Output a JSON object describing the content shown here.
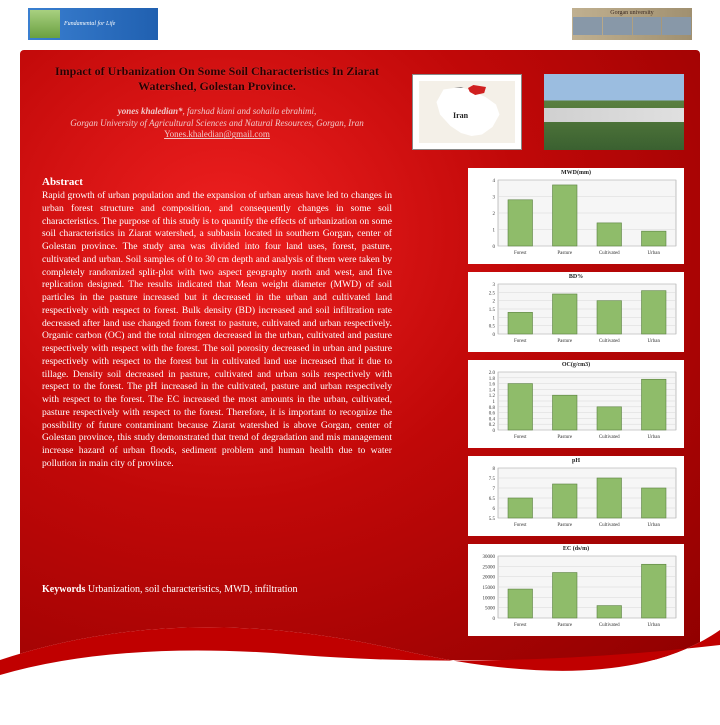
{
  "logo_left_text": "Fundamental for Life",
  "logo_right_text": "Gorgan university",
  "title": "Impact of Urbanization On Some Soil Characteristics In Ziarat Watershed, Golestan Province.",
  "authors_lead": "yones khaledian*",
  "authors_rest": ", farshad kiani and sohaila ebrahimi,",
  "affiliation": "Gorgan University of Agricultural Sciences and Natural Resources, Gorgan, Iran",
  "email": "Yones.khaledian@gmail.com",
  "abstract_head": "Abstract",
  "abstract": "Rapid growth of urban population and the expansion of urban areas have led to changes in urban forest structure and composition, and consequently changes in some soil characteristics. The purpose of this study is to quantify the effects of urbanization on some soil characteristics in Ziarat watershed, a subbasin located in southern Gorgan, center of Golestan province. The study area was divided into four land uses, forest, pasture, cultivated and urban. Soil samples of 0 to 30 cm depth and analysis of them were taken by completely randomized split-plot with two aspect geography north and west, and five replication designed. The results indicated that Mean weight diameter (MWD) of soil particles in the pasture increased but it decreased in the urban and cultivated land respectively with respect to forest. Bulk density (BD) increased and soil infiltration rate decreased after land use changed from forest to pasture, cultivated and urban respectively. Organic carbon (OC) and the total nitrogen decreased in the urban, cultivated and pasture respectively with respect with the forest. The soil porosity decreased in urban and pasture respectively with respect to the forest but in cultivated land use increased that it due to tillage. Density soil decreased in pasture, cultivated and urban soils respectively with respect to the forest. The pH increased in the cultivated, pasture and urban respectively with respect to the forest. The EC increased the most amounts in the urban, cultivated, pasture respectively with respect to the forest. Therefore, it is important to recognize the possibility of future contaminant because Ziarat watershed is above Gorgan, center of Golestan province, this study demonstrated that trend of degradation and mis management increase hazard of urban floods, sediment problem and human health due to water pollution in main city of province.",
  "keywords_label": "Keywords",
  "keywords": " Urbanization, soil characteristics, MWD, infiltration",
  "map_label": "Iran",
  "charts": {
    "categories": [
      "Forest",
      "Pasture",
      "Cultivated",
      "Urban"
    ],
    "bar_color": "#8fbc6a",
    "bar_border": "#5a8040",
    "grid_color": "#d8d8d8",
    "axis_color": "#888888",
    "bg": "#ffffff",
    "plot_bg": "#f6f6f6",
    "c1": {
      "title": "MWD(mm)",
      "values": [
        2.8,
        3.7,
        1.4,
        0.9
      ],
      "ymax": 4,
      "ystep": 1
    },
    "c2": {
      "title": "BD%",
      "values": [
        1.3,
        2.4,
        2.0,
        2.6
      ],
      "ymax": 3,
      "ystep": 0.5
    },
    "c3": {
      "title": "OC(g/cm3)",
      "values": [
        1.6,
        1.2,
        0.8,
        1.75
      ],
      "ymax": 2,
      "ystep": 0.2
    },
    "c4": {
      "title": "pH",
      "values": [
        6.5,
        7.2,
        7.5,
        7.0
      ],
      "ymin": 5.5,
      "ymax": 8,
      "ystep": 0.5
    },
    "c5": {
      "title": "EC (ds/m)",
      "values": [
        14000,
        22000,
        6000,
        26000
      ],
      "ymax": 30000,
      "ystep": 5000
    }
  }
}
